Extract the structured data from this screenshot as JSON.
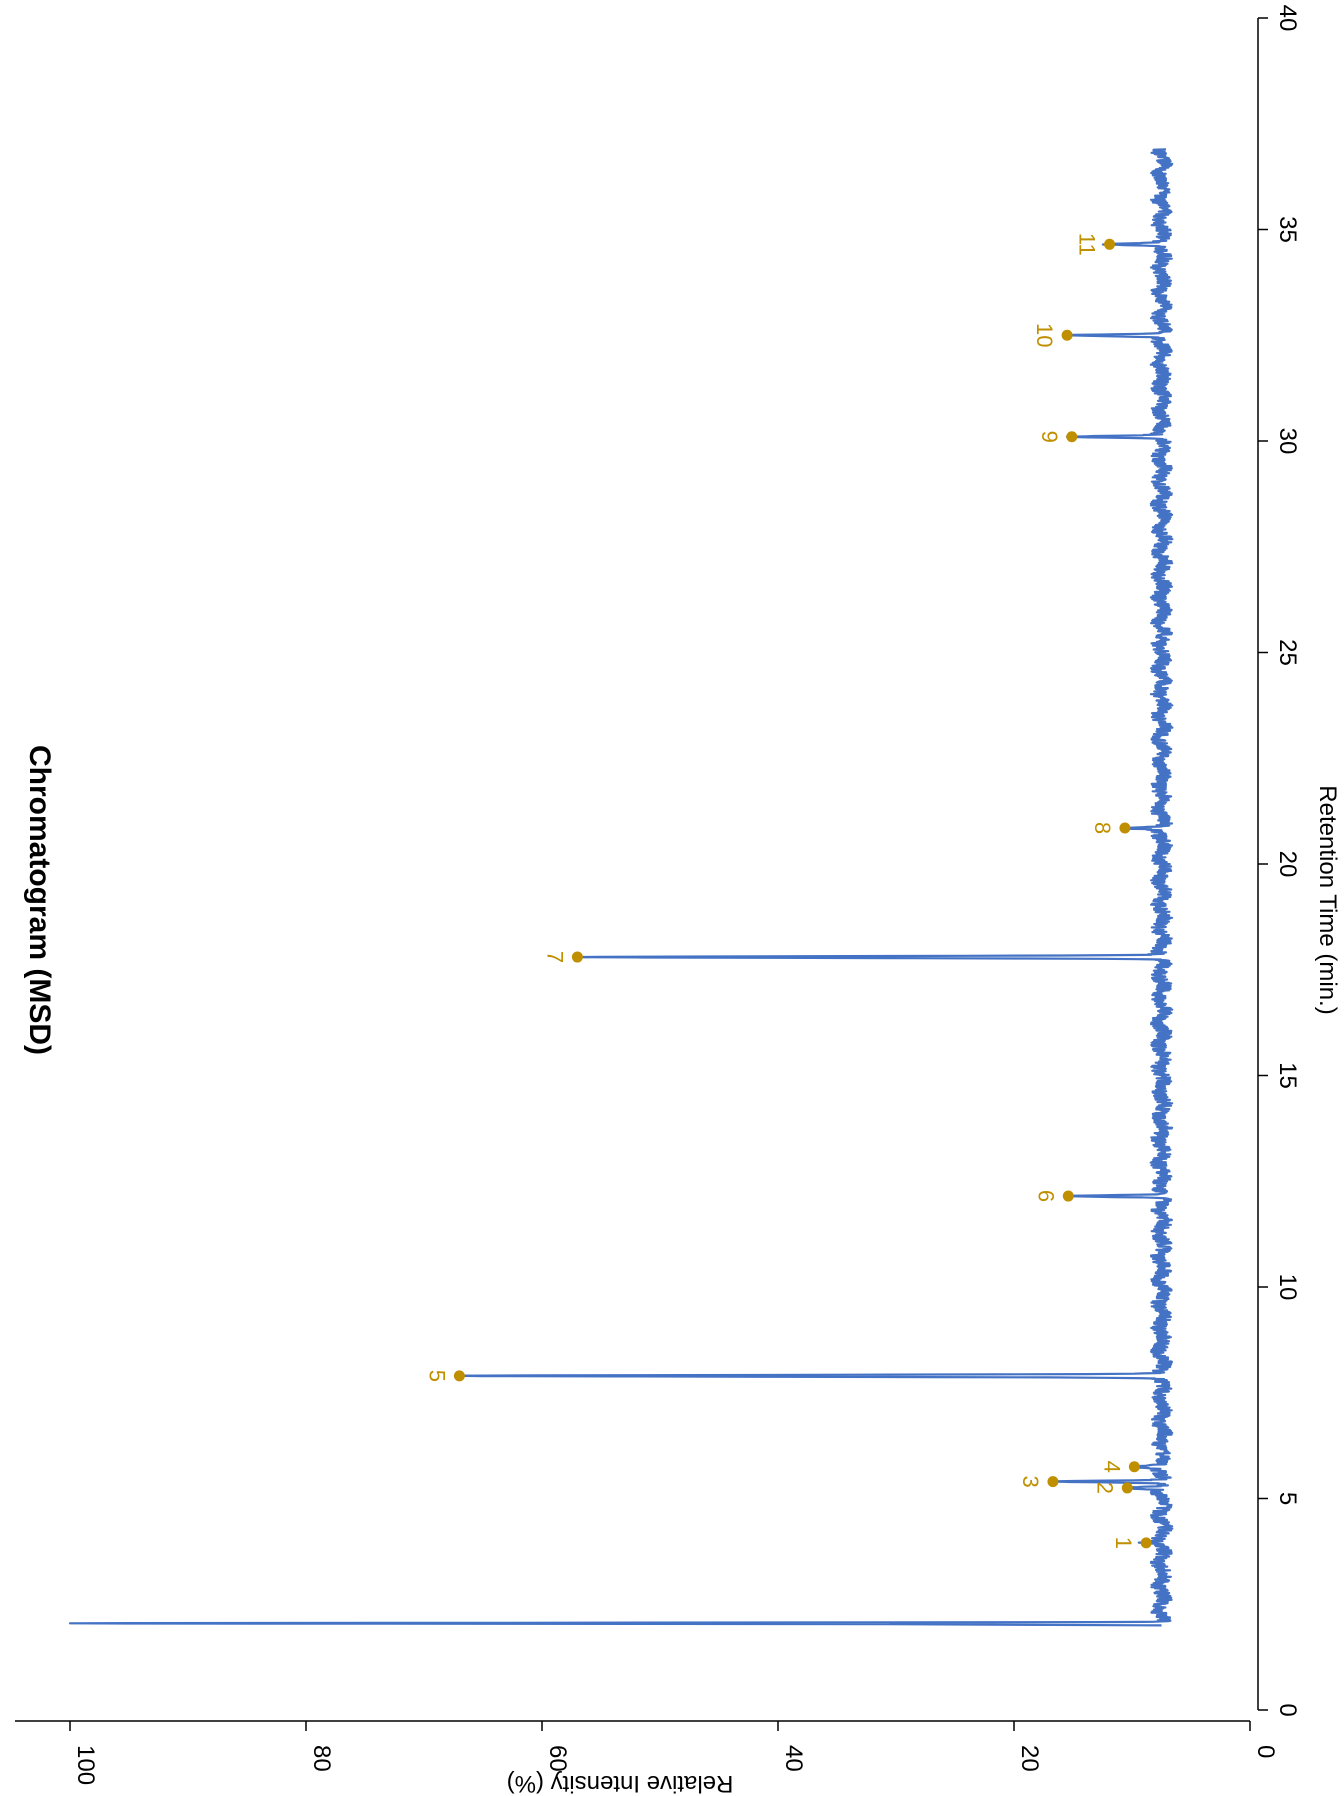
{
  "chart_data": {
    "type": "line",
    "title": "Chromatogram (MSD)",
    "xlabel": "Retention Time (min.)",
    "ylabel": "Relative Intensity (%)",
    "xlim": [
      0,
      40
    ],
    "ylim": [
      0,
      100
    ],
    "x_ticks": [
      "0",
      "5",
      "10",
      "15",
      "20",
      "25",
      "30",
      "35",
      "40"
    ],
    "y_ticks": [
      "0",
      "20",
      "40",
      "60",
      "80",
      "100"
    ],
    "grid": false,
    "orientation": "rotated 90 degrees clockwise",
    "series_color": "#4472C4",
    "marker_color": "#BF8F00",
    "baseline_percent": 7.5,
    "trace_range_min": [
      2.0,
      36.9
    ],
    "solvent_peak": {
      "rt": 2.05,
      "intensity": 100
    },
    "peaks": [
      {
        "label": "1",
        "rt": 3.95,
        "intensity": 8.8
      },
      {
        "label": "2",
        "rt": 5.25,
        "intensity": 10.4
      },
      {
        "label": "3",
        "rt": 5.4,
        "intensity": 16.7
      },
      {
        "label": "4",
        "rt": 5.75,
        "intensity": 9.8
      },
      {
        "label": "5",
        "rt": 7.9,
        "intensity": 67.0
      },
      {
        "label": "6",
        "rt": 12.15,
        "intensity": 15.4
      },
      {
        "label": "7",
        "rt": 17.8,
        "intensity": 57.0
      },
      {
        "label": "8",
        "rt": 20.85,
        "intensity": 10.6
      },
      {
        "label": "9",
        "rt": 30.1,
        "intensity": 15.1
      },
      {
        "label": "10",
        "rt": 32.5,
        "intensity": 15.5
      },
      {
        "label": "11",
        "rt": 34.65,
        "intensity": 11.9
      }
    ]
  }
}
